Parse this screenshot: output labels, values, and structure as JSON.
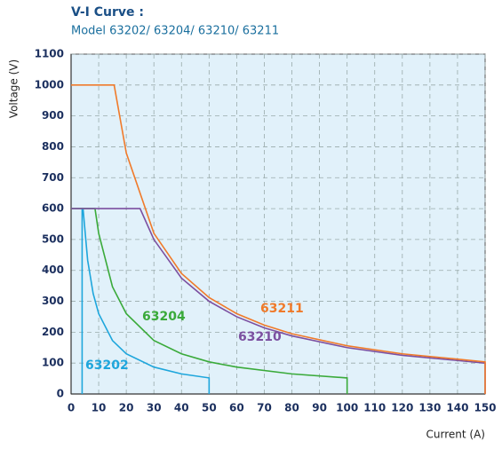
{
  "chart_data": {
    "type": "line",
    "title": "V-I Curve :",
    "subtitle": "Model 63202/ 63204/ 63210/ 63211",
    "x_label": "Current (A)",
    "y_label": "Voltage (V)",
    "xlim": [
      0,
      150
    ],
    "ylim": [
      0,
      1100
    ],
    "xticks": [
      0,
      10,
      20,
      30,
      40,
      50,
      60,
      70,
      80,
      90,
      100,
      110,
      120,
      130,
      140,
      150
    ],
    "yticks": [
      0,
      100,
      200,
      300,
      400,
      500,
      600,
      700,
      800,
      900,
      1000,
      1100
    ],
    "grid": true,
    "series": [
      {
        "name": "63202",
        "color": "#1ea6dc",
        "x": [
          4,
          4,
          4.33,
          6,
          8,
          10,
          15,
          20,
          30,
          40,
          50,
          50
        ],
        "values": [
          0,
          600,
          600,
          433,
          325,
          260,
          173,
          130,
          87,
          65,
          52,
          0
        ]
      },
      {
        "name": "63204",
        "color": "#3aaa3a",
        "x": [
          0,
          8.67,
          10,
          15,
          20,
          30,
          40,
          50,
          60,
          80,
          100,
          100
        ],
        "values": [
          600,
          600,
          520,
          347,
          260,
          173,
          130,
          104,
          87,
          65,
          52,
          0
        ]
      },
      {
        "name": "63210",
        "color": "#7b4fa0",
        "x": [
          0,
          25,
          30,
          40,
          50,
          60,
          70,
          80,
          100,
          120,
          150,
          150
        ],
        "values": [
          600,
          600,
          500,
          375,
          300,
          250,
          214,
          188,
          150,
          125,
          100,
          0
        ]
      },
      {
        "name": "63211",
        "color": "#f07a2a",
        "x": [
          0,
          15.6,
          20,
          30,
          40,
          50,
          60,
          70,
          80,
          100,
          120,
          150,
          150
        ],
        "values": [
          1000,
          1000,
          780,
          520,
          390,
          312,
          260,
          223,
          195,
          156,
          130,
          104,
          0
        ]
      }
    ]
  }
}
